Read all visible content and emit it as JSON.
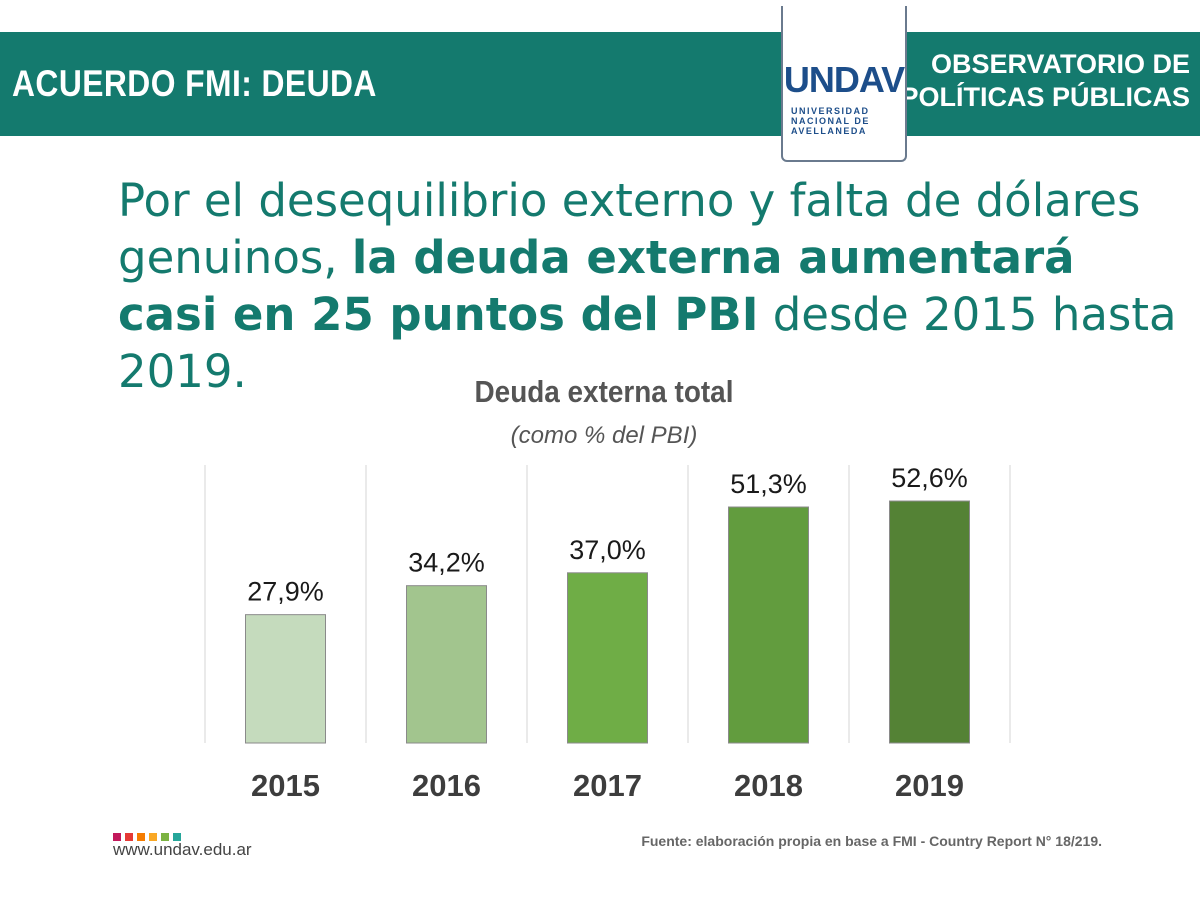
{
  "banner": {
    "title": "ACUERDO FMI: DEUDA",
    "right_line1": "OBSERVATORIO DE",
    "right_line2": "POLÍTICAS PÚBLICAS",
    "color": "#147a6e"
  },
  "logo": {
    "mark": "UNDAV",
    "line1": "UNIVERSIDAD",
    "line2": "NACIONAL DE",
    "line3": "AVELLANEDA"
  },
  "headline": {
    "part1": "Por el desequilibrio externo y falta de dólares genuinos, ",
    "bold": "la deuda externa aumentará casi en 25 puntos del PBI",
    "part2": " desde 2015 hasta 2019."
  },
  "footer": {
    "url": "www.undav.edu.ar",
    "source": "Fuente: elaboración propia en base a FMI - Country Report N° 18/219.",
    "dot_colors": [
      "#c2185b",
      "#e53935",
      "#f57c00",
      "#f9a825",
      "#7cb342",
      "#26a69a"
    ]
  },
  "chart_data": {
    "type": "bar",
    "title": "Deuda externa total",
    "subtitle": "(como % del PBI)",
    "categories": [
      "2015",
      "2016",
      "2017",
      "2018",
      "2019"
    ],
    "values": [
      27.9,
      34.2,
      37.0,
      51.3,
      52.6
    ],
    "value_labels": [
      "27,9%",
      "34,2%",
      "37,0%",
      "51,3%",
      "52,6%"
    ],
    "bar_colors": [
      "#c5dbbd",
      "#a2c58e",
      "#6fad46",
      "#629c3e",
      "#548235"
    ],
    "ylim": [
      0,
      60
    ],
    "grid": true
  }
}
